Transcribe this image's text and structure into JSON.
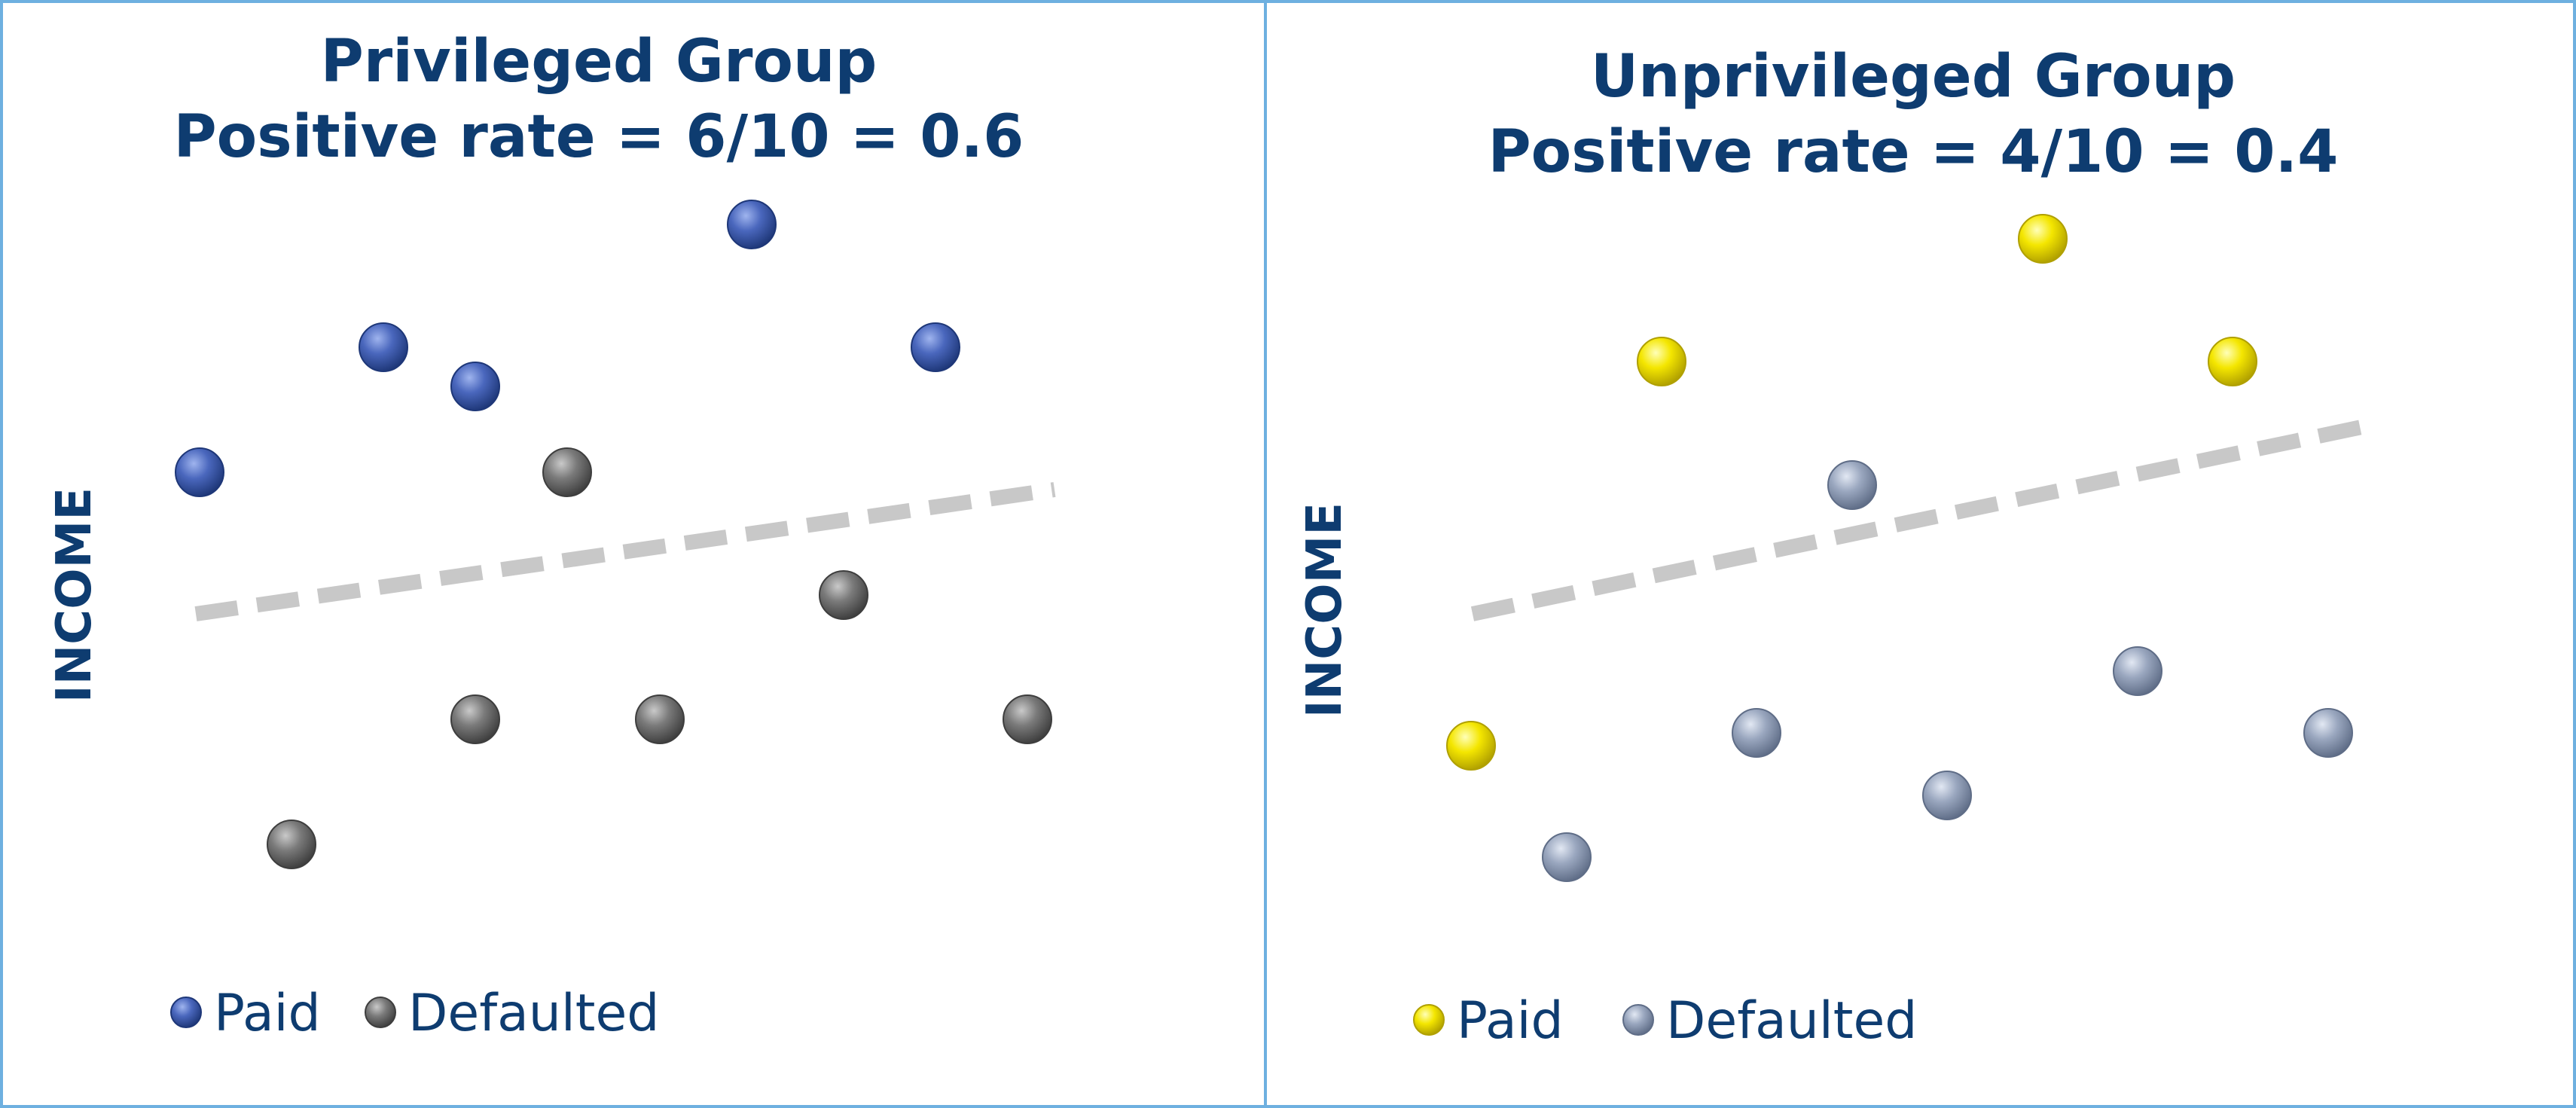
{
  "panels": [
    {
      "title_line1": "Privileged Group",
      "title_line2": "Positive rate = 6/10 = 0.6",
      "axis_label": "INCOME",
      "legend": {
        "paid_label": "Paid",
        "defaulted_label": "Defaulted"
      },
      "colors": {
        "paid": "#4a67bd",
        "defaulted": "#7a7a7a"
      }
    },
    {
      "title_line1": "Unprivileged Group",
      "title_line2": "Positive rate = 4/10 = 0.4",
      "axis_label": "INCOME",
      "legend": {
        "paid_label": "Paid",
        "defaulted_label": "Defaulted"
      },
      "colors": {
        "paid": "#f4e600",
        "defaulted": "#9aa7bf"
      }
    }
  ],
  "colors": {
    "title": "#0e3c70",
    "border": "#6eb0e0",
    "boundary_line": "#c8c8c8"
  }
}
